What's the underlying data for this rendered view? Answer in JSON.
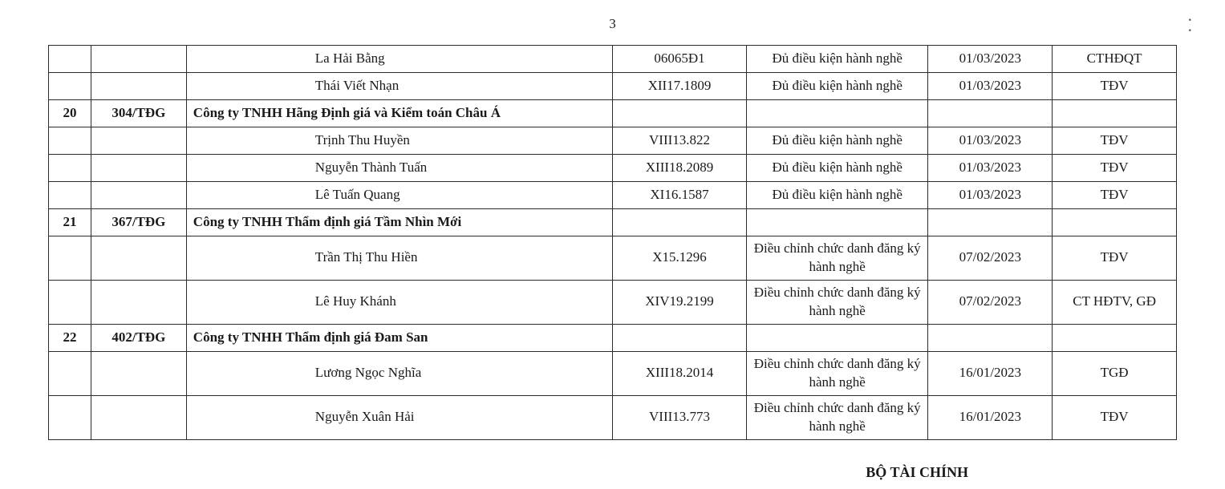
{
  "page_number": "3",
  "footer": "BỘ TÀI CHÍNH",
  "colors": {
    "text": "#1a1a1a",
    "border": "#2b2b2b",
    "background": "#ffffff"
  },
  "fonts": {
    "family": "Times New Roman",
    "body_size_pt": 13,
    "footer_size_pt": 13
  },
  "column_widths_percent": [
    3.5,
    9,
    32.5,
    13,
    18,
    12,
    12
  ],
  "rows": [
    {
      "stt": "",
      "ma": "",
      "ten": "La Hải Bằng",
      "indent": true,
      "company": false,
      "so": "06065Đ1",
      "tt": "Đủ điều kiện hành nghề",
      "ngay": "01/03/2023",
      "cd": "CTHĐQT"
    },
    {
      "stt": "",
      "ma": "",
      "ten": "Thái Viết Nhạn",
      "indent": true,
      "company": false,
      "so": "XII17.1809",
      "tt": "Đủ điều kiện hành nghề",
      "ngay": "01/03/2023",
      "cd": "TĐV"
    },
    {
      "stt": "20",
      "ma": "304/TĐG",
      "ten": "Công ty TNHH Hãng Định giá và Kiểm toán Châu Á",
      "indent": false,
      "company": true,
      "so": "",
      "tt": "",
      "ngay": "",
      "cd": ""
    },
    {
      "stt": "",
      "ma": "",
      "ten": "Trịnh Thu Huyền",
      "indent": true,
      "company": false,
      "so": "VIII13.822",
      "tt": "Đủ điều kiện hành nghề",
      "ngay": "01/03/2023",
      "cd": "TĐV"
    },
    {
      "stt": "",
      "ma": "",
      "ten": "Nguyễn Thành Tuấn",
      "indent": true,
      "company": false,
      "so": "XIII18.2089",
      "tt": "Đủ điều kiện hành nghề",
      "ngay": "01/03/2023",
      "cd": "TĐV"
    },
    {
      "stt": "",
      "ma": "",
      "ten": "Lê Tuấn Quang",
      "indent": true,
      "company": false,
      "so": "XI16.1587",
      "tt": "Đủ điều kiện hành nghề",
      "ngay": "01/03/2023",
      "cd": "TĐV"
    },
    {
      "stt": "21",
      "ma": "367/TĐG",
      "ten": "Công ty TNHH Thẩm định giá Tầm Nhìn Mới",
      "indent": false,
      "company": true,
      "so": "",
      "tt": "",
      "ngay": "",
      "cd": ""
    },
    {
      "stt": "",
      "ma": "",
      "ten": "Trần Thị Thu Hiền",
      "indent": true,
      "company": false,
      "so": "X15.1296",
      "tt": "Điều chỉnh chức danh đăng ký hành nghề",
      "ngay": "07/02/2023",
      "cd": "TĐV"
    },
    {
      "stt": "",
      "ma": "",
      "ten": "Lê Huy Khánh",
      "indent": true,
      "company": false,
      "so": "XIV19.2199",
      "tt": "Điều chỉnh chức danh đăng ký hành nghề",
      "ngay": "07/02/2023",
      "cd": "CT HĐTV, GĐ"
    },
    {
      "stt": "22",
      "ma": "402/TĐG",
      "ten": "Công ty TNHH Thẩm định giá Đam San",
      "indent": false,
      "company": true,
      "so": "",
      "tt": "",
      "ngay": "",
      "cd": ""
    },
    {
      "stt": "",
      "ma": "",
      "ten": "Lương Ngọc Nghĩa",
      "indent": true,
      "company": false,
      "so": "XIII18.2014",
      "tt": "Điều chỉnh chức danh đăng ký hành nghề",
      "ngay": "16/01/2023",
      "cd": "TGĐ"
    },
    {
      "stt": "",
      "ma": "",
      "ten": "Nguyễn Xuân Hải",
      "indent": true,
      "company": false,
      "so": "VIII13.773",
      "tt": "Điều chỉnh chức danh đăng ký hành nghề",
      "ngay": "16/01/2023",
      "cd": "TĐV"
    }
  ]
}
